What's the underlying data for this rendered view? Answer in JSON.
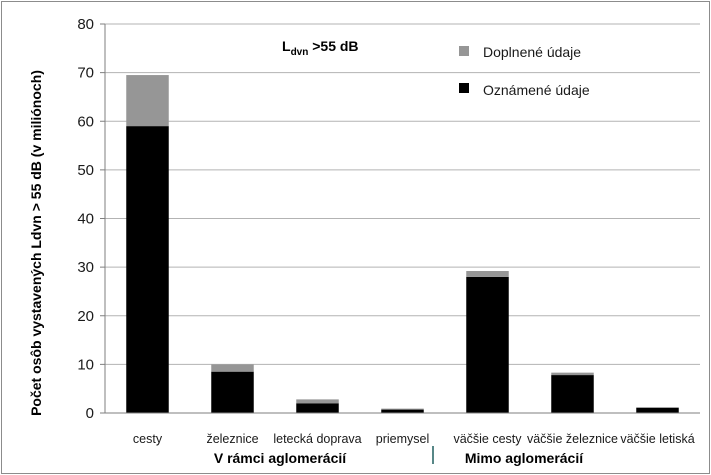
{
  "chart_data": {
    "type": "bar",
    "stacked": true,
    "categories": [
      "cesty",
      "železnice",
      "letecká doprava",
      "priemysel",
      "väčšie cesty",
      "väčšie železnice",
      "väčšie letiská"
    ],
    "series": [
      {
        "name": "Oznámené údaje",
        "values": [
          59,
          8.5,
          2,
          0.7,
          28,
          7.8,
          1.1
        ],
        "color": "#000000"
      },
      {
        "name": "Doplnené údaje",
        "values": [
          10.5,
          1.5,
          0.8,
          0.2,
          1.2,
          0.5,
          0
        ],
        "color": "#969696"
      }
    ],
    "ylabel": "Počet osôb vystavených Ldvn > 55 dB (v miliónoch)",
    "ylim": [
      0,
      80
    ],
    "yticks": [
      0,
      10,
      20,
      30,
      40,
      50,
      60,
      70,
      80
    ],
    "grid": true,
    "legend": "top-right",
    "annotation": {
      "main": "L",
      "sub": "dvn",
      "rest": " >55 dB"
    },
    "groups": [
      {
        "label": "V rámci aglomerácií",
        "categories": [
          0,
          1,
          2,
          3
        ]
      },
      {
        "label": "Mimo aglomerácií",
        "categories": [
          4,
          5,
          6
        ]
      }
    ]
  }
}
